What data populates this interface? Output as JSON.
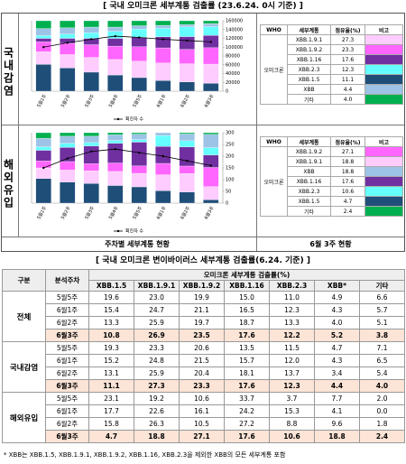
{
  "header": {
    "title": "[ 국내 오미크론 세부계통 검출률 (23.6.24. 0시 기준) ]"
  },
  "panels": [
    {
      "label": "국내감염",
      "table": {
        "columns": [
          "WHO",
          "세부계통",
          "점유율(%)",
          "비고"
        ],
        "who": "오미크론",
        "rows": [
          [
            "XBB.1.9.1",
            "27.3"
          ],
          [
            "XBB.1.9.2",
            "23.3"
          ],
          [
            "XBB.1.16",
            "17.6"
          ],
          [
            "XBB.2.3",
            "12.3"
          ],
          [
            "XBB.1.5",
            "11.1"
          ],
          [
            "XBB",
            "4.4"
          ],
          [
            "기타",
            "4.0"
          ]
        ]
      }
    },
    {
      "label": "해외유입",
      "table": {
        "columns": [
          "WHO",
          "세부계통",
          "점유율(%)",
          "비고"
        ],
        "who": "오미크론",
        "rows": [
          [
            "XBB.1.9.2",
            "27.1"
          ],
          [
            "XBB.1.9.1",
            "18.8"
          ],
          [
            "XBB",
            "18.8"
          ],
          [
            "XBB.1.16",
            "17.6"
          ],
          [
            "XBB.2.3",
            "10.6"
          ],
          [
            "XBB.1.5",
            "4.7"
          ],
          [
            "기타",
            "2.4"
          ]
        ]
      }
    }
  ],
  "chart_data": [
    {
      "type": "bar",
      "stacked": true,
      "categories": [
        "5월1주",
        "5월2주",
        "5월3주",
        "5월4주",
        "5월5주",
        "6월1주",
        "6월2주",
        "6월3주"
      ],
      "ylim": [
        0,
        100
      ],
      "y2lim": [
        0,
        160000
      ],
      "y2ticks": [
        0,
        20000,
        40000,
        60000,
        80000,
        100000,
        120000,
        140000,
        160000
      ],
      "series": [
        {
          "name": "XBB.1.5",
          "color": "#1f4e79",
          "values": [
            38,
            33,
            27,
            23,
            19.3,
            15.2,
            13.1,
            11.1
          ]
        },
        {
          "name": "XBB.1.9.1",
          "color": "#ffccff",
          "values": [
            18,
            19,
            21,
            22,
            23.3,
            24.8,
            25.9,
            27.3
          ]
        },
        {
          "name": "XBB.1.9.2",
          "color": "#ff66ff",
          "values": [
            14,
            16,
            18,
            19,
            20.6,
            21.5,
            20.4,
            23.3
          ]
        },
        {
          "name": "XBB.1.16",
          "color": "#7030a0",
          "values": [
            5,
            7,
            9,
            11,
            13.5,
            15.7,
            18.1,
            17.6
          ]
        },
        {
          "name": "XBB.2.3",
          "color": "#66ffff",
          "values": [
            4,
            6,
            8,
            10,
            11.5,
            12.0,
            13.7,
            12.3
          ]
        },
        {
          "name": "XBB",
          "color": "#9dc3e6",
          "values": [
            10,
            9,
            8,
            6,
            4.7,
            4.3,
            3.4,
            4.4
          ]
        },
        {
          "name": "기타",
          "color": "#00b050",
          "values": [
            11,
            10,
            9,
            9,
            7.1,
            6.5,
            5.4,
            4.0
          ]
        },
        {
          "name": "확진자 수",
          "type": "line",
          "axis": "y2",
          "color": "#000000",
          "values": [
            100000,
            110000,
            118000,
            125000,
            122000,
            118000,
            115000,
            112000
          ]
        }
      ]
    },
    {
      "type": "bar",
      "stacked": true,
      "categories": [
        "5월1주",
        "5월2주",
        "5월3주",
        "5월4주",
        "5월5주",
        "6월1주",
        "6월2주",
        "6월3주"
      ],
      "ylim": [
        0,
        100
      ],
      "y2lim": [
        0,
        300
      ],
      "y2ticks": [
        0,
        50,
        100,
        150,
        200,
        250,
        300
      ],
      "series": [
        {
          "name": "XBB.1.5",
          "color": "#1f4e79",
          "values": [
            35,
            30,
            28,
            25,
            23.1,
            17.7,
            15.8,
            4.7
          ]
        },
        {
          "name": "XBB.1.9.1",
          "color": "#ffccff",
          "values": [
            15,
            17,
            18,
            20,
            19.2,
            22.6,
            26.3,
            18.8
          ]
        },
        {
          "name": "XBB.1.9.2",
          "color": "#ff66ff",
          "values": [
            10,
            12,
            10,
            12,
            10.6,
            16.1,
            10.5,
            27.1
          ]
        },
        {
          "name": "XBB.1.16",
          "color": "#7030a0",
          "values": [
            15,
            20,
            25,
            28,
            33.7,
            24.2,
            27.2,
            17.6
          ]
        },
        {
          "name": "XBB.2.3",
          "color": "#66ffff",
          "values": [
            5,
            6,
            5,
            4,
            3.7,
            15.3,
            8.8,
            10.6
          ]
        },
        {
          "name": "XBB",
          "color": "#9dc3e6",
          "values": [
            12,
            10,
            9,
            8,
            7.7,
            4.1,
            9.6,
            18.8
          ]
        },
        {
          "name": "기타",
          "color": "#00b050",
          "values": [
            8,
            5,
            5,
            3,
            2.0,
            0.0,
            1.8,
            2.4
          ]
        },
        {
          "name": "확진자 수",
          "type": "line",
          "axis": "y2",
          "color": "#000000",
          "values": [
            150,
            190,
            220,
            230,
            215,
            200,
            180,
            160
          ]
        }
      ]
    }
  ],
  "footer_labels": [
    "주차별 세부계통 현황",
    "6월 3주 현황"
  ],
  "table": {
    "title": "[ 국내 오미크론 변이바이러스 세부계통 검출률(6.24. 기준) ]",
    "headers": [
      "구분",
      "분석주차",
      "오미크론 세부계통 검출률(%)"
    ],
    "subheaders": [
      "XBB.1.5",
      "XBB.1.9.1",
      "XBB.1.9.2",
      "XBB.1.16",
      "XBB.2.3",
      "XBB*",
      "기타"
    ],
    "groups": [
      {
        "name": "전체",
        "rows": [
          {
            "week": "5월5주",
            "values": [
              "19.6",
              "23.0",
              "19.9",
              "15.0",
              "11.0",
              "4.9",
              "6.6"
            ]
          },
          {
            "week": "6월1주",
            "values": [
              "15.4",
              "24.7",
              "21.1",
              "16.5",
              "12.3",
              "4.3",
              "5.7"
            ]
          },
          {
            "week": "6월2주",
            "values": [
              "13.3",
              "25.9",
              "19.7",
              "18.7",
              "13.3",
              "4.0",
              "5.1"
            ]
          },
          {
            "week": "6월3주",
            "values": [
              "10.8",
              "26.9",
              "23.5",
              "17.6",
              "12.2",
              "5.2",
              "3.8"
            ]
          }
        ]
      },
      {
        "name": "국내감염",
        "rows": [
          {
            "week": "5월5주",
            "values": [
              "19.3",
              "23.3",
              "20.6",
              "13.5",
              "11.5",
              "4.7",
              "7.1"
            ]
          },
          {
            "week": "6월1주",
            "values": [
              "15.2",
              "24.8",
              "21.5",
              "15.7",
              "12.0",
              "4.3",
              "6.5"
            ]
          },
          {
            "week": "6월2주",
            "values": [
              "13.1",
              "25.9",
              "20.4",
              "18.1",
              "13.7",
              "3.4",
              "5.4"
            ]
          },
          {
            "week": "6월3주",
            "values": [
              "11.1",
              "27.3",
              "23.3",
              "17.6",
              "12.3",
              "4.4",
              "4.0"
            ]
          }
        ]
      },
      {
        "name": "해외유입",
        "rows": [
          {
            "week": "5월5주",
            "values": [
              "23.1",
              "19.2",
              "10.6",
              "33.7",
              "3.7",
              "7.7",
              "2.0"
            ]
          },
          {
            "week": "6월1주",
            "values": [
              "17.7",
              "22.6",
              "16.1",
              "24.2",
              "15.3",
              "4.1",
              "0.0"
            ]
          },
          {
            "week": "6월2주",
            "values": [
              "15.8",
              "26.3",
              "10.5",
              "27.2",
              "8.8",
              "9.6",
              "1.8"
            ]
          },
          {
            "week": "6월3주",
            "values": [
              "4.7",
              "18.8",
              "27.1",
              "17.6",
              "10.6",
              "18.8",
              "2.4"
            ]
          }
        ]
      }
    ]
  },
  "footnote": "* XBB는 XBB.1.5, XBB.1.9.1, XBB.1.9.2, XBB.1.16, XBB.2.3을 제외한 XBB의 모든 세부계통 포함"
}
